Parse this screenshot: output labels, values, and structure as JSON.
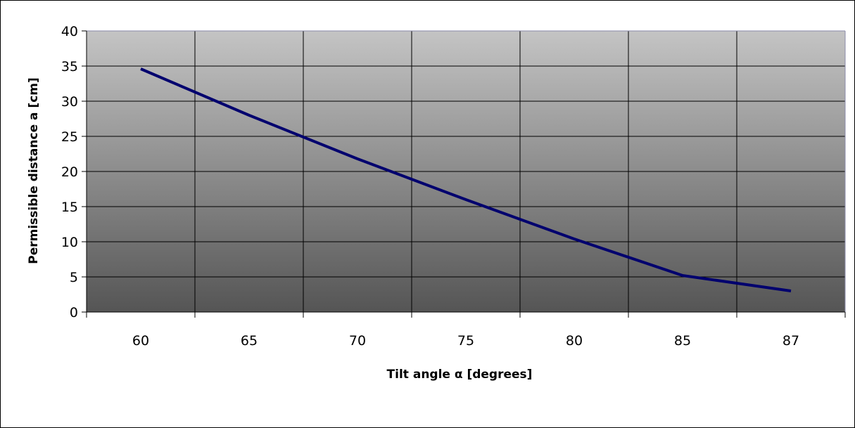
{
  "chart_data": {
    "type": "line",
    "title": "",
    "xlabel": "Tilt angle α [degrees]",
    "ylabel": "Permissible distance a [cm]",
    "categories": [
      "60",
      "65",
      "70",
      "75",
      "80",
      "85",
      "87"
    ],
    "series": [
      {
        "values": [
          34.6,
          28.0,
          21.8,
          16.0,
          10.4,
          5.2,
          3.0
        ]
      }
    ],
    "ylim": [
      0,
      40
    ],
    "yticks": [
      "0",
      "5",
      "10",
      "15",
      "20",
      "25",
      "30",
      "35",
      "40"
    ],
    "grid": true,
    "legend": "none",
    "colors": {
      "line": "#00006e",
      "plot_bg_top": "#c4c4c4",
      "plot_bg_bottom": "#555555",
      "grid": "#000000"
    }
  }
}
